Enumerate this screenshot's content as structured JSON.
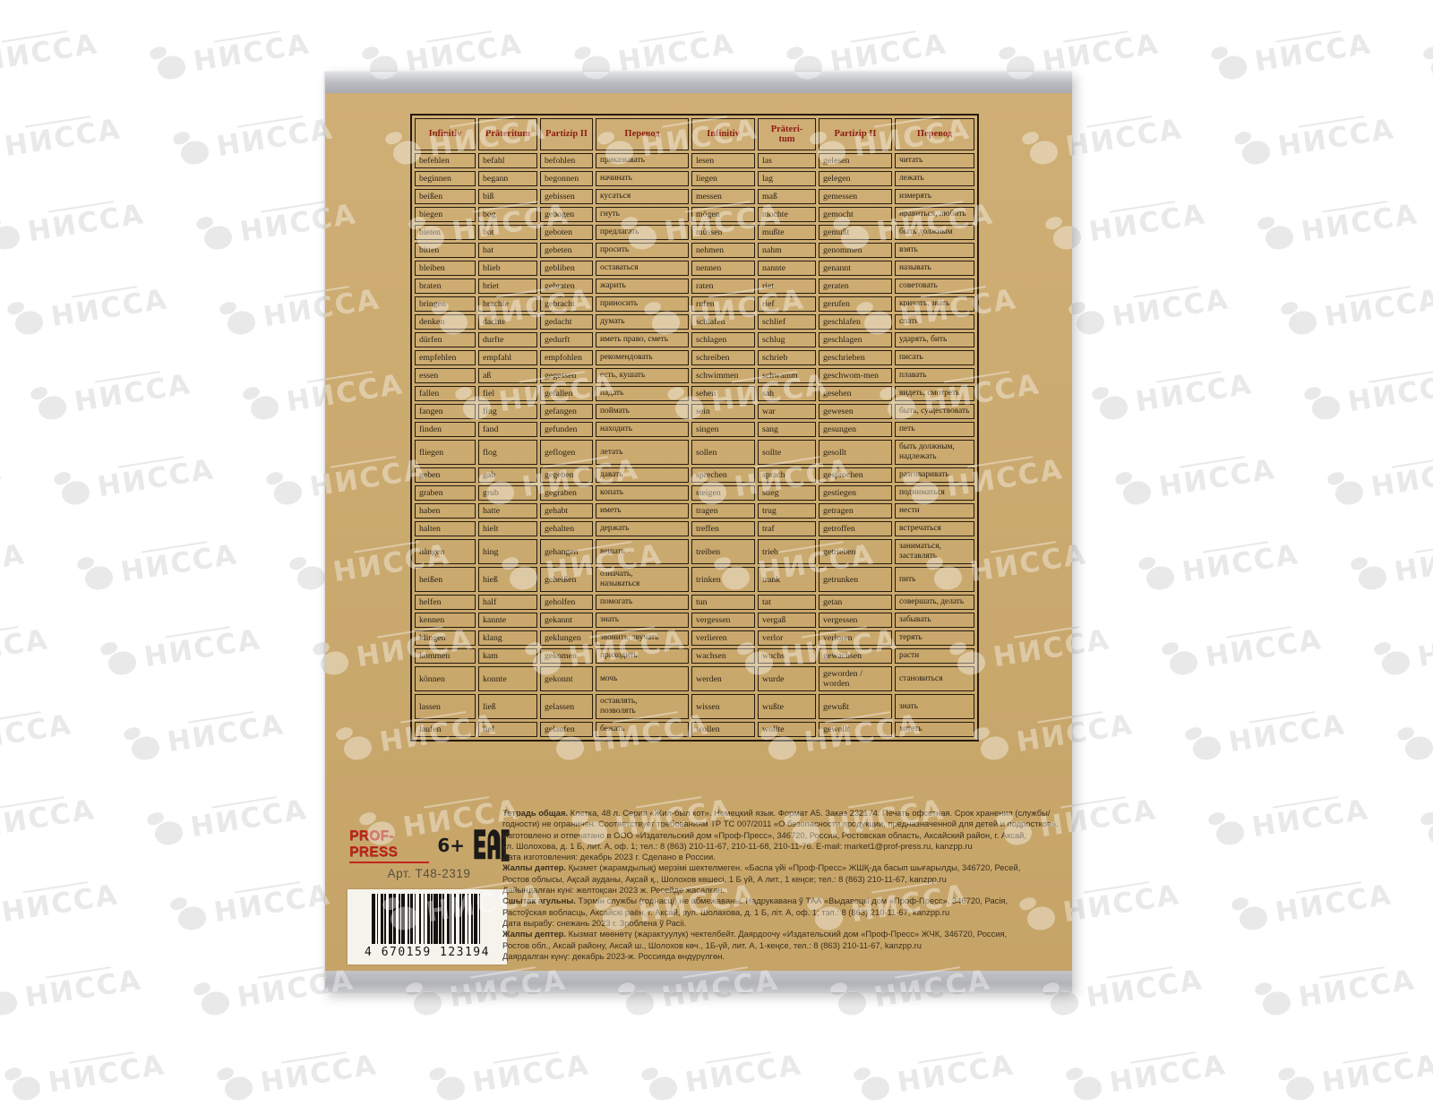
{
  "watermark": {
    "text": "НИССА"
  },
  "table": {
    "headers": [
      "Infinitiv",
      "Präteritum",
      "Partizip II",
      "Перевод",
      "Infinitiv",
      "Präteri-\ntum",
      "Partizip II",
      "Перевод"
    ],
    "rows": [
      [
        "befehlen",
        "befahl",
        "befohlen",
        "приказывать",
        "lesen",
        "las",
        "gelesen",
        "читать"
      ],
      [
        "beginnen",
        "begann",
        "begonnen",
        "начинать",
        "liegen",
        "lag",
        "gelegen",
        "лежать"
      ],
      [
        "beißen",
        "biß",
        "gebissen",
        "кусаться",
        "messen",
        "maß",
        "gemessen",
        "измерять"
      ],
      [
        "biegen",
        "bog",
        "gebogen",
        "гнуть",
        "mögen",
        "mochte",
        "gemocht",
        "нравиться, любить"
      ],
      [
        "bieten",
        "bot",
        "geboten",
        "предлагать",
        "müssen",
        "mußte",
        "gemußt",
        "быть должным"
      ],
      [
        "bitten",
        "bat",
        "gebeten",
        "просить",
        "nehmen",
        "nahm",
        "genommen",
        "взять"
      ],
      [
        "bleiben",
        "blieb",
        "gebliben",
        "оставаться",
        "nennen",
        "nannte",
        "genannt",
        "называть"
      ],
      [
        "braten",
        "briet",
        "gebraten",
        "жарить",
        "raten",
        "riet",
        "geraten",
        "советовать"
      ],
      [
        "bringen",
        "brachte",
        "gebracht",
        "приносить",
        "rufen",
        "rief",
        "gerufen",
        "кричать, звать"
      ],
      [
        "denken",
        "dachte",
        "gedacht",
        "думать",
        "schlafen",
        "schlief",
        "geschlafen",
        "спать"
      ],
      [
        "dürfen",
        "durfte",
        "gedurft",
        "иметь право, сметь",
        "schlagen",
        "schlug",
        "geschlagen",
        "ударять, бить"
      ],
      [
        "empfehlen",
        "empfahl",
        "empfohlen",
        "рекомендовать",
        "schreiben",
        "schrieb",
        "geschrieben",
        "писать"
      ],
      [
        "essen",
        "aß",
        "gegessen",
        "есть, кушать",
        "schwimmen",
        "schwamm",
        "geschwom-men",
        "плавать"
      ],
      [
        "fallen",
        "fiel",
        "gefallen",
        "падать",
        "sehen",
        "sah",
        "gesehen",
        "видеть, смотреть"
      ],
      [
        "fangen",
        "fing",
        "gefangen",
        "поймать",
        "sein",
        "war",
        "gewesen",
        "быть, существовать"
      ],
      [
        "finden",
        "fand",
        "gefunden",
        "находить",
        "singen",
        "sang",
        "gesungen",
        "петь"
      ],
      [
        "fliegen",
        "flog",
        "geflogen",
        "летать",
        "sollen",
        "sollte",
        "gesollt",
        "быть должным,\nнадлежать"
      ],
      [
        "geben",
        "gab",
        "gegeben",
        "давать",
        "sprechen",
        "sprach",
        "gesprochen",
        "разговаривать"
      ],
      [
        "graben",
        "grub",
        "gegraben",
        "копать",
        "steigen",
        "stieg",
        "gestiegen",
        "подниматься"
      ],
      [
        "haben",
        "hatte",
        "gehabt",
        "иметь",
        "tragen",
        "trug",
        "getragen",
        "нести"
      ],
      [
        "halten",
        "hielt",
        "gehalten",
        "держать",
        "treffen",
        "traf",
        "getroffen",
        "встречаться"
      ],
      [
        "hängen",
        "hing",
        "gehangen",
        "вешать",
        "treiben",
        "trieb",
        "getrieben",
        "заниматься,\nзаставлять"
      ],
      [
        "heißen",
        "hieß",
        "geheißen",
        "означать,\nназываться",
        "trinken",
        "trank",
        "getrunken",
        "пить"
      ],
      [
        "helfen",
        "half",
        "geholfen",
        "помогать",
        "tun",
        "tat",
        "getan",
        "совершать, делать"
      ],
      [
        "kennen",
        "kannte",
        "gekannt",
        "знать",
        "vergessen",
        "vergaß",
        "vergessen",
        "забывать"
      ],
      [
        "klingen",
        "klang",
        "geklungen",
        "звонить, звучать",
        "verlieren",
        "verlor",
        "verloren",
        "терять"
      ],
      [
        "kommen",
        "kam",
        "gekomen",
        "приходить",
        "wachsen",
        "wuchs",
        "gewachsen",
        "расти"
      ],
      [
        "können",
        "konnte",
        "gekonnt",
        "мочь",
        "werden",
        "wurde",
        "geworden /\nworden",
        "становиться"
      ],
      [
        "lassen",
        "ließ",
        "gelassen",
        "оставлять,\nпозволять",
        "wissen",
        "wußte",
        "gewußt",
        "знать"
      ],
      [
        "laufen",
        "lief",
        "gelaufen",
        "бежать",
        "wollen",
        "wollte",
        "gewollt",
        "хотеть"
      ]
    ]
  },
  "footer": {
    "brand": "PROF-PRESS",
    "age_rating": "6+",
    "eac_label": "EAC",
    "article": "Арт. Т48-2319",
    "barcode_digits": "4 670159 123194",
    "legal_lines": [
      {
        "lead": "Тетрадь общая.",
        "text": " Клетка, 48 л. Серия «Жил-был кот». Немецкий язык. Формат А5. Заказ 232174. Печать офсетная. Срок хранения (службы/"
      },
      {
        "lead": "",
        "text": "годности) не ограничен. Соответствует требованиям ТР ТС 007/2011 «О безопасности продукции, предназначенной для детей и подростков»."
      },
      {
        "lead": "",
        "text": "Изготовлено и отпечатано в ООО «Издательский дом «Проф-Пресс», 346720, Россия, Ростовская область, Аксайский район, г. Аксай,"
      },
      {
        "lead": "",
        "text": "ул. Шолохова, д. 1 Б, лит. А, оф. 1; тел.: 8 (863) 210-11-67, 210-11-68, 210-11-76. E-mail: market1@prof-press.ru, kanzpp.ru"
      },
      {
        "lead": "",
        "text": "Дата изготовления: декабрь 2023 г. Сделано в России."
      },
      {
        "lead": "Жалпы дәптер.",
        "text": " Қызмет (жарамдылық) мерзімі шектелмеген. «Баспа үйі «Проф-Пресс» ЖШҚ-да басып шығарылды, 346720, Ресей,"
      },
      {
        "lead": "",
        "text": "Ростов облысы, Ақсай ауданы, Ақсай қ., Шолохов көшесі, 1 Б үй, А лит., 1 кеңсе; тел.: 8 (863) 210-11-67, kanzpp.ru"
      },
      {
        "lead": "",
        "text": "Дайындалған күні: желтоқсан 2023 ж. Ресейде жасалған."
      },
      {
        "lead": "Сшытак агульны.",
        "text": " Тэрмін службы (годнасці) не абмежаваны. Надрукавана ў ТАА «Выдавецкі дом «Проф-Пресс», 346720, Расія,"
      },
      {
        "lead": "",
        "text": "Растоўская вобласць, Аксайскі раён, г. Аксай, вул. Шолахова, д. 1 Б, літ. А, оф. 1; тэл.: 8 (863) 210-11-67, kanzpp.ru"
      },
      {
        "lead": "",
        "text": "Дата вырабу: снежань 2023 г. Зроблена ў Расіі."
      },
      {
        "lead": "Жалпы дептер.",
        "text": " Кызмат мөөнөтү (жарактуулук) чектелбейт. Даярдоочу «Издательский дом «Проф-Пресс» ЖЧК, 346720, Россия,"
      },
      {
        "lead": "",
        "text": "Ростов обл., Аксай району, Аксай ш., Шолохов көч., 1Б-үй, лит. А, 1-кеңсе, тел.: 8 (863) 210-11-67, kanzpp.ru"
      },
      {
        "lead": "",
        "text": "Даярдалган күнү: декабрь 2023-ж. Россияда өндүрүлгөн."
      }
    ]
  }
}
